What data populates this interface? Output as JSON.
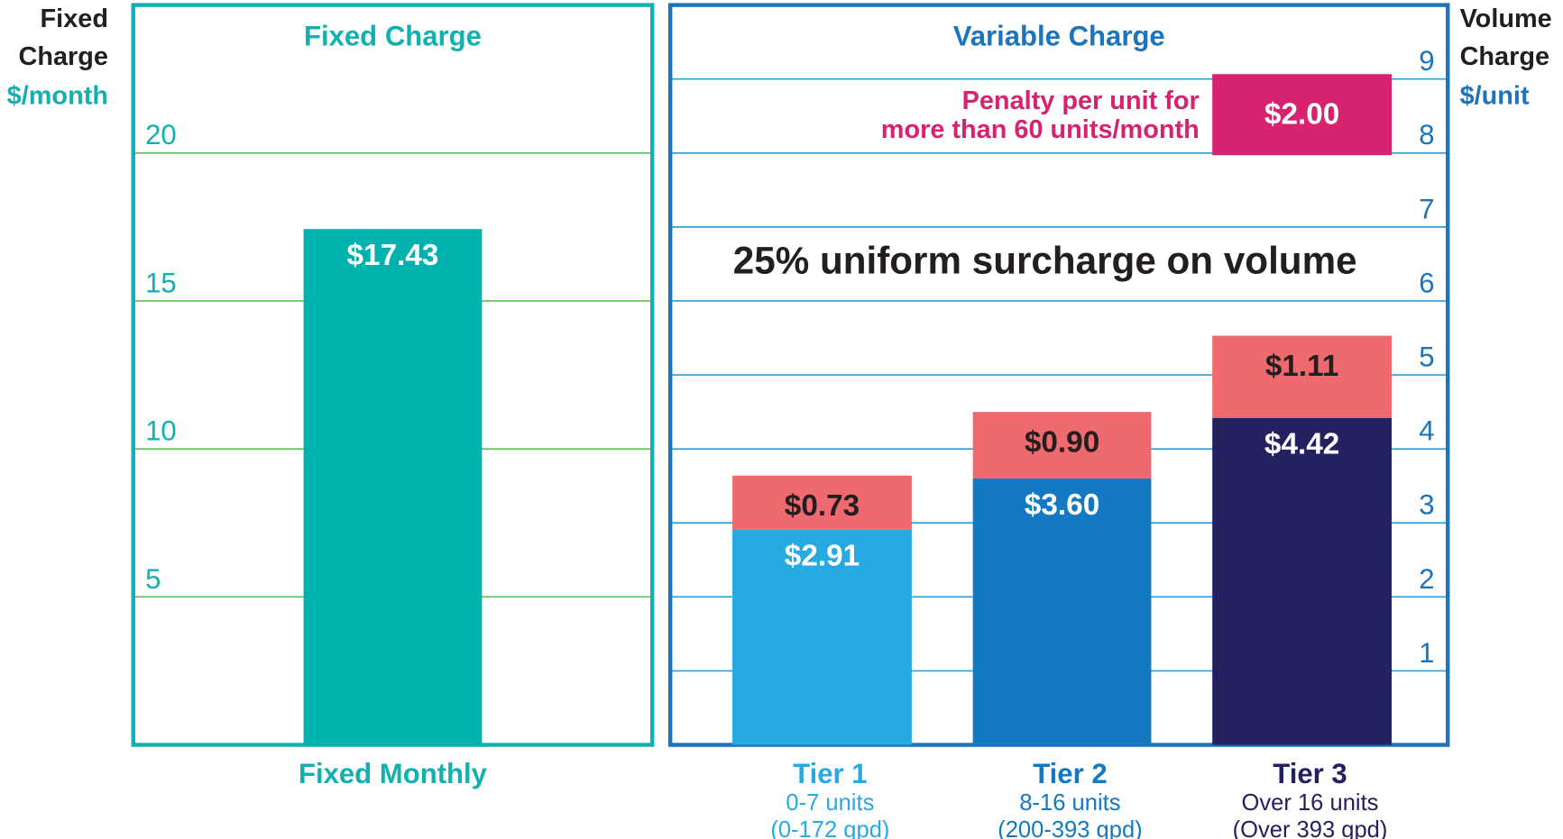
{
  "chart_data": [
    {
      "type": "bar",
      "title": "Fixed Charge",
      "y_label": [
        "Fixed",
        "Charge"
      ],
      "y_unit": "$/month",
      "categories": [
        "Fixed Monthly"
      ],
      "values": [
        17.43
      ],
      "value_labels": [
        "$17.43"
      ],
      "color": "#00b2ae",
      "ylim": [
        0,
        25
      ],
      "yticks": [
        5,
        10,
        15,
        20
      ],
      "grid": true
    },
    {
      "type": "stacked_bar",
      "title": "Variable Charge",
      "y_label": [
        "Volume",
        "Charge"
      ],
      "y_unit": "$/unit",
      "categories": [
        "Tier 1",
        "Tier 2",
        "Tier 3"
      ],
      "category_notes": [
        [
          "0-7 units",
          "(0-172 gpd)"
        ],
        [
          "8-16 units",
          "(200-393 gpd)"
        ],
        [
          "Over 16 units",
          "(Over 393 gpd)"
        ]
      ],
      "series": [
        {
          "colors": [
            "#27a9e1",
            "#1279c2",
            "#23215f"
          ],
          "values": [
            2.91,
            3.6,
            4.42
          ],
          "value_labels": [
            "$2.91",
            "$3.60",
            "$4.42"
          ]
        },
        {
          "color": "#ef6a6e",
          "values": [
            0.73,
            0.9,
            1.11
          ],
          "value_labels": [
            "$0.73",
            "$0.90",
            "$1.11"
          ]
        }
      ],
      "ylim": [
        0,
        10
      ],
      "yticks": [
        1,
        2,
        3,
        4,
        5,
        6,
        7,
        8,
        9
      ],
      "grid": true,
      "annotations": {
        "surcharge": "25% uniform surcharge on volume",
        "penalty": [
          "Penalty per unit for",
          "more than 60 units/month"
        ],
        "penalty_value": "$2.00"
      }
    }
  ]
}
